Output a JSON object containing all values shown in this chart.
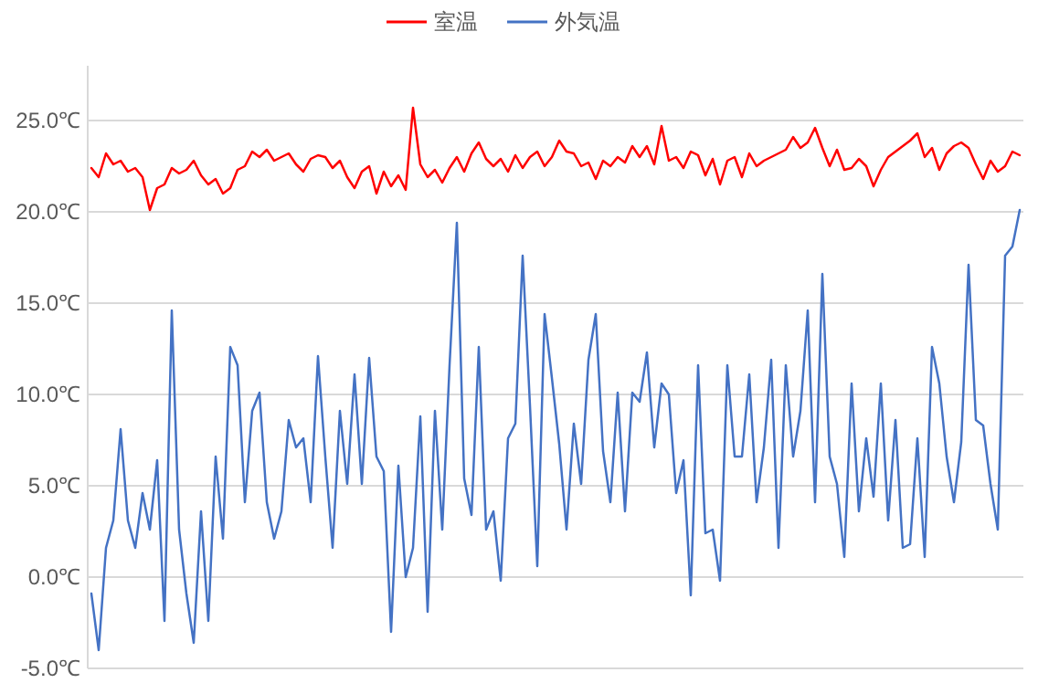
{
  "chart_data": {
    "type": "line",
    "categories": [
      null,
      null,
      null,
      null,
      null,
      null,
      null,
      null,
      null,
      null,
      null,
      null,
      null,
      null,
      null,
      null,
      null,
      null,
      null,
      null,
      null,
      null,
      null,
      null,
      null,
      null,
      null,
      null,
      null,
      null,
      null,
      null,
      null,
      null,
      null,
      null,
      null,
      null,
      null,
      null,
      null,
      null,
      null,
      null,
      null,
      null,
      null,
      null,
      null,
      null,
      null,
      null,
      null,
      null,
      null,
      null,
      null,
      null,
      null,
      null,
      null,
      null,
      null,
      null,
      null,
      null,
      null,
      null,
      null,
      null,
      null,
      null,
      null,
      null,
      null,
      null,
      null,
      null,
      null,
      null,
      null,
      null,
      null,
      null,
      null,
      null,
      null,
      null,
      null,
      null,
      null,
      null,
      null,
      null,
      null,
      null,
      null,
      null,
      null,
      null,
      null,
      null,
      null,
      null,
      null,
      null,
      null,
      null,
      null,
      null,
      null,
      null,
      null,
      null,
      null,
      null,
      null,
      null,
      null,
      null,
      null,
      null,
      null,
      null,
      null,
      null,
      null,
      null
    ],
    "series": [
      {
        "name": "室温",
        "color": "#ff0000",
        "values": [
          22.4,
          21.9,
          23.2,
          22.6,
          22.8,
          22.2,
          22.4,
          21.9,
          20.1,
          21.3,
          21.5,
          22.4,
          22.1,
          22.3,
          22.8,
          22.0,
          21.5,
          21.8,
          21.0,
          21.3,
          22.3,
          22.5,
          23.3,
          23.0,
          23.4,
          22.8,
          23.0,
          23.2,
          22.6,
          22.2,
          22.9,
          23.1,
          23.0,
          22.4,
          22.8,
          21.9,
          21.3,
          22.2,
          22.5,
          21.0,
          22.2,
          21.4,
          22.0,
          21.2,
          25.7,
          22.6,
          21.9,
          22.3,
          21.6,
          22.4,
          23.0,
          22.2,
          23.2,
          23.8,
          22.9,
          22.5,
          22.9,
          22.2,
          23.1,
          22.4,
          23.0,
          23.3,
          22.5,
          23.0,
          23.9,
          23.3,
          23.2,
          22.5,
          22.7,
          21.8,
          22.8,
          22.5,
          23.0,
          22.7,
          23.6,
          23.0,
          23.6,
          22.6,
          24.7,
          22.8,
          23.0,
          22.4,
          23.3,
          23.1,
          22.0,
          22.9,
          21.5,
          22.8,
          23.0,
          21.9,
          23.2,
          22.5,
          22.8,
          23.0,
          23.2,
          23.4,
          24.1,
          23.5,
          23.8,
          24.6,
          23.5,
          22.5,
          23.4,
          22.3,
          22.4,
          22.9,
          22.5,
          21.4,
          22.3,
          23.0,
          23.3,
          23.6,
          23.9,
          24.3,
          23.0,
          23.5,
          22.3,
          23.2,
          23.6,
          23.8,
          23.5,
          22.6,
          21.8,
          22.8,
          22.2,
          22.5,
          23.3,
          23.1
        ]
      },
      {
        "name": "外気温",
        "color": "#4472c4",
        "values": [
          -0.9,
          -4.0,
          1.6,
          3.1,
          8.1,
          3.1,
          1.6,
          4.6,
          2.6,
          6.4,
          -2.4,
          14.6,
          2.6,
          -0.9,
          -3.6,
          3.6,
          -2.4,
          6.6,
          2.1,
          12.6,
          11.6,
          4.1,
          9.1,
          10.1,
          4.1,
          2.1,
          3.6,
          8.6,
          7.1,
          7.6,
          4.1,
          12.1,
          6.6,
          1.6,
          9.1,
          5.1,
          11.1,
          5.1,
          12.0,
          6.6,
          5.8,
          -3.0,
          6.1,
          0.0,
          1.6,
          8.8,
          -1.9,
          9.1,
          2.6,
          11.6,
          19.4,
          5.4,
          3.4,
          12.6,
          2.6,
          3.6,
          -0.2,
          7.6,
          8.4,
          17.6,
          9.4,
          0.6,
          14.4,
          10.9,
          7.3,
          2.6,
          8.4,
          5.1,
          11.9,
          14.4,
          6.9,
          4.1,
          10.1,
          3.6,
          10.1,
          9.6,
          12.3,
          7.1,
          10.6,
          10.0,
          4.6,
          6.4,
          -1.0,
          11.6,
          2.4,
          2.6,
          -0.2,
          11.6,
          6.6,
          6.6,
          11.1,
          4.1,
          7.1,
          11.9,
          1.6,
          11.6,
          6.6,
          9.1,
          14.6,
          4.1,
          16.6,
          6.6,
          5.1,
          1.1,
          10.6,
          3.6,
          7.6,
          4.4,
          10.6,
          3.1,
          8.6,
          1.6,
          1.8,
          7.6,
          1.1,
          12.6,
          10.6,
          6.6,
          4.1,
          7.4,
          17.1,
          8.6,
          8.3,
          5.1,
          2.6,
          17.6,
          18.1,
          20.1
        ]
      }
    ],
    "ylim": [
      -5,
      28
    ],
    "yticks": [
      {
        "value": -5,
        "label": "-5.0℃"
      },
      {
        "value": 0,
        "label": "0.0℃"
      },
      {
        "value": 5,
        "label": "5.0℃"
      },
      {
        "value": 10,
        "label": "10.0℃"
      },
      {
        "value": 15,
        "label": "15.0℃"
      },
      {
        "value": 20,
        "label": "20.0℃"
      },
      {
        "value": 25,
        "label": "25.0℃"
      }
    ],
    "grid": "y",
    "legend": "top"
  }
}
